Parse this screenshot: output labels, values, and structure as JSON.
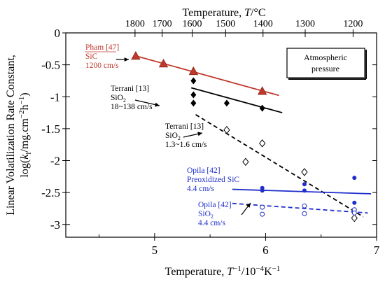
{
  "chart_data": {
    "type": "scatter",
    "title": "",
    "xlabel_parts": [
      "Temperature, ",
      "T",
      "−1",
      "/10",
      "−4",
      "K",
      "−1"
    ],
    "ylabel_line1": "Linear Volatilization Rate Constant,",
    "ylabel_line2_parts": [
      "log(",
      "k",
      "l",
      "/mg.cm",
      "−2",
      "h",
      "−1",
      ")"
    ],
    "top_xlabel_parts": [
      "Temperature, ",
      "T",
      "/°C"
    ],
    "xlim": [
      4.2,
      7.0
    ],
    "ylim": [
      -3.2,
      0.0
    ],
    "xticks": [
      5,
      6,
      7
    ],
    "xtick_labels": [
      "5",
      "6",
      "7"
    ],
    "yticks": [
      0,
      -0.5,
      -1,
      -1.5,
      -2,
      -2.5,
      -3
    ],
    "ytick_labels": [
      "0",
      "-0.5",
      "-1",
      "-1.5",
      "-2",
      "-2.5",
      "-3"
    ],
    "top_ticks_c": [
      1800,
      1700,
      1600,
      1500,
      1400,
      1300,
      1200
    ],
    "top_tick_labels": [
      "1800",
      "1700",
      "1600",
      "1500",
      "1400",
      "1300",
      "1200"
    ],
    "legend_box": {
      "line1": "Atmospheric",
      "line2": "pressure"
    },
    "series": [
      {
        "name": "Pham [47] SiC 1200 cm/s",
        "color": "#c0392b",
        "marker": "filled-triangle",
        "points": [
          [
            4.83,
            -0.36
          ],
          [
            5.08,
            -0.48
          ],
          [
            5.35,
            -0.6
          ],
          [
            5.97,
            -0.91
          ]
        ],
        "fit": [
          [
            4.83,
            -0.36
          ],
          [
            6.12,
            -0.98
          ]
        ],
        "fit_style": "solid"
      },
      {
        "name": "Terrani [13] SiO2 18~138 cm/s",
        "color": "#000000",
        "marker": "filled-diamond",
        "points": [
          [
            5.35,
            -0.75
          ],
          [
            5.35,
            -0.97
          ],
          [
            5.35,
            -1.1
          ],
          [
            5.65,
            -1.1
          ],
          [
            5.97,
            -1.18
          ]
        ],
        "fit": [
          [
            5.33,
            -0.86
          ],
          [
            6.15,
            -1.25
          ]
        ],
        "fit_style": "solid"
      },
      {
        "name": "Terrani [13] SiO2 1.3~1.6 cm/s",
        "color": "#000000",
        "marker": "open-diamond",
        "points": [
          [
            5.65,
            -1.52
          ],
          [
            5.82,
            -2.02
          ],
          [
            5.97,
            -1.73
          ],
          [
            6.35,
            -2.18
          ],
          [
            6.8,
            -2.9
          ]
        ],
        "fit": [
          [
            5.37,
            -1.28
          ],
          [
            6.88,
            -2.88
          ]
        ],
        "fit_style": "dashed"
      },
      {
        "name": "Opila [42] Preoxidized SiC 4.4 cm/s",
        "color": "#1f2ecc",
        "marker": "filled-circle",
        "points": [
          [
            5.97,
            -2.43
          ],
          [
            5.97,
            -2.47
          ],
          [
            6.35,
            -2.37
          ],
          [
            6.35,
            -2.47
          ],
          [
            6.8,
            -2.27
          ],
          [
            6.8,
            -2.66
          ]
        ],
        "fit": [
          [
            5.7,
            -2.45
          ],
          [
            6.95,
            -2.52
          ]
        ],
        "fit_style": "solid"
      },
      {
        "name": "Opila [42] SiO2 4.4 cm/s",
        "color": "#1f2ecc",
        "marker": "open-circle",
        "points": [
          [
            5.97,
            -2.73
          ],
          [
            5.97,
            -2.84
          ],
          [
            6.35,
            -2.71
          ],
          [
            6.35,
            -2.83
          ],
          [
            6.8,
            -2.77
          ],
          [
            6.8,
            -2.82
          ]
        ],
        "fit": [
          [
            5.7,
            -2.67
          ],
          [
            6.92,
            -2.82
          ]
        ],
        "fit_style": "dashed"
      }
    ],
    "annotations": [
      {
        "lines": [
          "Pham [47]",
          "SiC",
          "1200 cm/s"
        ],
        "color": "#c0392b"
      },
      {
        "lines": [
          "Terrani [13]",
          "SiO2",
          "18~138 cm/s"
        ],
        "color": "#000000"
      },
      {
        "lines": [
          "Terrani [13]",
          "SiO2",
          "1.3~1.6 cm/s"
        ],
        "color": "#000000"
      },
      {
        "lines": [
          "Opila [42]",
          "Preoxidized SiC",
          "4.4 cm/s"
        ],
        "color": "#1f2ecc"
      },
      {
        "lines": [
          "Opila [42]",
          "SiO2",
          "4.4 cm/s"
        ],
        "color": "#1f2ecc"
      }
    ]
  }
}
